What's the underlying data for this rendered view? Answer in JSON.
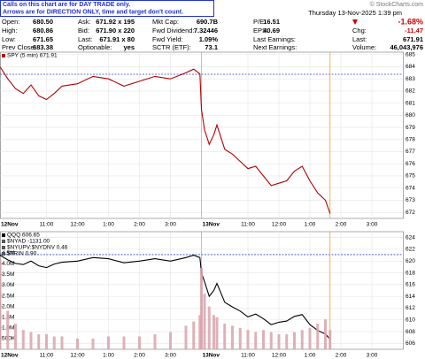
{
  "banner": [
    "Calls on this chart are for DAY TRADE only.",
    "Arrows are for DIRECTION ONLY, time and target don't count."
  ],
  "watermark": "© StockCharts.com",
  "quote": {
    "rows": [
      [
        {
          "label": "Open:",
          "value": "680.50"
        },
        {
          "label": "Ask:",
          "value": "671.92 x 195"
        },
        {
          "label": "Mkt Cap:",
          "value": "690.7B"
        },
        {
          "label": "P/E:",
          "value": "16.51"
        }
      ],
      [
        {
          "label": "High:",
          "value": "680.86"
        },
        {
          "label": "Bid:",
          "value": "671.90 x 220"
        },
        {
          "label": "Fwd Dividend:",
          "value": "7.32446"
        },
        {
          "label": "EPS:",
          "value": "40.69"
        }
      ],
      [
        {
          "label": "Low:",
          "value": "671.65"
        },
        {
          "label": "Last:",
          "value": "671.91 x 80"
        },
        {
          "label": "Fwd Yield:",
          "value": "1.09%"
        },
        {
          "label": "Last Earnings:"
        }
      ],
      [
        {
          "label": "Prev Close:",
          "value": "683.38"
        },
        {
          "label": "Optionable:",
          "value": "yes"
        },
        {
          "label": "SCTR (ETF):",
          "value": "73.1"
        },
        {
          "label": "Next Earnings:"
        }
      ]
    ]
  },
  "status": {
    "date": "Thursday 13-Nov-2025 1:39 pm",
    "change_pct": "-1.68%",
    "rows": [
      {
        "label": "Chg:",
        "value": "-11.47"
      },
      {
        "label": "Last:",
        "value": "671.91"
      },
      {
        "label": "Volume:",
        "value": "46,043,976"
      }
    ]
  },
  "chart_data": [
    {
      "type": "line",
      "series": [
        {
          "name": "SPY (5 min) 671.91",
          "color": "#b00000",
          "x": [
            0,
            0.25,
            0.5,
            0.75,
            1,
            1.25,
            1.5,
            1.75,
            2,
            2.5,
            3,
            3.5,
            4,
            4.5,
            5,
            5.5,
            6,
            6.25,
            6.45,
            6.5,
            6.6,
            6.75,
            6.9,
            7,
            7.25,
            7.5,
            7.75,
            8,
            8.25,
            8.5,
            8.75,
            9,
            9.25,
            9.5,
            9.75,
            10,
            10.25,
            10.5,
            10.65
          ],
          "values": [
            684.0,
            683.0,
            682.2,
            681.8,
            682.5,
            681.6,
            681.3,
            681.8,
            682.4,
            682.6,
            683.2,
            683.0,
            682.4,
            682.8,
            683.2,
            683.0,
            683.5,
            683.8,
            683.4,
            680.5,
            678.8,
            677.6,
            678.4,
            679.2,
            677.2,
            676.8,
            676.2,
            675.6,
            675.8,
            675.0,
            674.2,
            674.4,
            674.6,
            675.4,
            675.8,
            674.6,
            673.6,
            673.0,
            671.9
          ]
        }
      ],
      "reference_line": 683.38,
      "current_x": 10.65,
      "xlim": [
        0,
        13
      ],
      "ylim": [
        671.5,
        685.2
      ],
      "yticks": [
        672,
        673,
        674,
        675,
        676,
        677,
        678,
        679,
        680,
        681,
        682,
        683,
        684,
        685
      ],
      "xticks": [
        {
          "value": 0,
          "label": "12Nov"
        },
        {
          "value": 1.5,
          "label": "11:00"
        },
        {
          "value": 2.5,
          "label": "12:00"
        },
        {
          "value": 3.5,
          "label": "1:00"
        },
        {
          "value": 4.5,
          "label": "2:00"
        },
        {
          "value": 5.5,
          "label": "3:00"
        },
        {
          "value": 6.5,
          "label": "13Nov"
        },
        {
          "value": 8,
          "label": "11:00"
        },
        {
          "value": 9,
          "label": "12:00"
        },
        {
          "value": 10,
          "label": "1:00"
        },
        {
          "value": 11,
          "label": "2:00"
        },
        {
          "value": 12,
          "label": "3:00"
        }
      ],
      "grid": true
    },
    {
      "type": "line",
      "series": [
        {
          "name": "QQQ 606.65",
          "color": "#000000",
          "x": [
            0,
            0.25,
            0.5,
            0.75,
            1,
            1.25,
            1.5,
            1.75,
            2,
            2.5,
            3,
            3.5,
            4,
            4.5,
            5,
            5.5,
            6,
            6.25,
            6.45,
            6.5,
            6.6,
            6.75,
            6.9,
            7,
            7.25,
            7.5,
            7.75,
            8,
            8.25,
            8.5,
            8.75,
            9,
            9.25,
            9.5,
            9.75,
            10,
            10.25,
            10.5,
            10.65
          ],
          "values": [
            621.0,
            620.2,
            619.6,
            619.4,
            620.0,
            619.2,
            618.9,
            619.5,
            619.8,
            620.0,
            620.6,
            620.4,
            619.7,
            620.0,
            620.4,
            620.0,
            620.6,
            621.0,
            620.6,
            618.0,
            616.5,
            614.0,
            615.0,
            616.2,
            613.0,
            612.2,
            611.5,
            610.5,
            611.0,
            610.2,
            609.2,
            609.6,
            609.8,
            610.6,
            610.9,
            609.2,
            608.2,
            607.6,
            606.7
          ]
        },
        {
          "color": "#d8a3ab",
          "axis": "y2",
          "x": [
            0,
            0.25,
            0.5,
            0.75,
            1,
            1.25,
            1.5,
            1.75,
            2,
            2.5,
            3,
            3.5,
            4,
            4.5,
            5,
            5.5,
            6,
            6.25,
            6.45,
            6.5,
            6.6,
            6.75,
            6.9,
            7,
            7.25,
            7.5,
            7.75,
            8,
            8.25,
            8.5,
            8.75,
            9,
            9.25,
            9.5,
            9.75,
            10,
            10.25,
            10.5,
            10.65
          ],
          "values": [
            4200000,
            1800000,
            1200000,
            900000,
            800000,
            700000,
            700000,
            600000,
            600000,
            500000,
            500000,
            600000,
            600000,
            600000,
            700000,
            800000,
            1100000,
            1300000,
            1600000,
            3800000,
            2600000,
            2000000,
            1600000,
            1500000,
            1200000,
            1100000,
            1000000,
            900000,
            800000,
            900000,
            800000,
            700000,
            700000,
            800000,
            900000,
            1000000,
            1200000,
            1400000,
            900000
          ]
        }
      ],
      "legend": [
        "$NYAD -1131.00",
        "$NYUPV:$NYDNV 0.46",
        "$TRIN 0.90"
      ],
      "reference_line": 621.1,
      "current_x": 10.65,
      "xlim": [
        0,
        13
      ],
      "ylim": [
        605,
        625
      ],
      "y2lim": [
        0,
        5500000
      ],
      "yticks": [
        606,
        608,
        610,
        612,
        614,
        616,
        618,
        620,
        622,
        624
      ],
      "y2ticks": [
        {
          "value": 500000,
          "label": "500K"
        },
        {
          "value": 1000000,
          "label": "1.0M"
        },
        {
          "value": 1500000,
          "label": "1.5M"
        },
        {
          "value": 2000000,
          "label": "2.0M"
        },
        {
          "value": 2500000,
          "label": "2.5M"
        },
        {
          "value": 3000000,
          "label": "3.0M"
        },
        {
          "value": 3500000,
          "label": "3.5M"
        },
        {
          "value": 4000000,
          "label": "4.0M"
        },
        {
          "value": 4500000,
          "label": "4.5M"
        }
      ],
      "xticks": [
        {
          "value": 0,
          "label": "12Nov"
        },
        {
          "value": 1.5,
          "label": "11:00"
        },
        {
          "value": 2.5,
          "label": "12:00"
        },
        {
          "value": 3.5,
          "label": "1:00"
        },
        {
          "value": 4.5,
          "label": "2:00"
        },
        {
          "value": 5.5,
          "label": "3:00"
        },
        {
          "value": 6.5,
          "label": "13Nov"
        },
        {
          "value": 8,
          "label": "11:00"
        },
        {
          "value": 9,
          "label": "12:00"
        },
        {
          "value": 10,
          "label": "1:00"
        },
        {
          "value": 11,
          "label": "2:00"
        },
        {
          "value": 12,
          "label": "3:00"
        }
      ],
      "grid": true
    }
  ]
}
